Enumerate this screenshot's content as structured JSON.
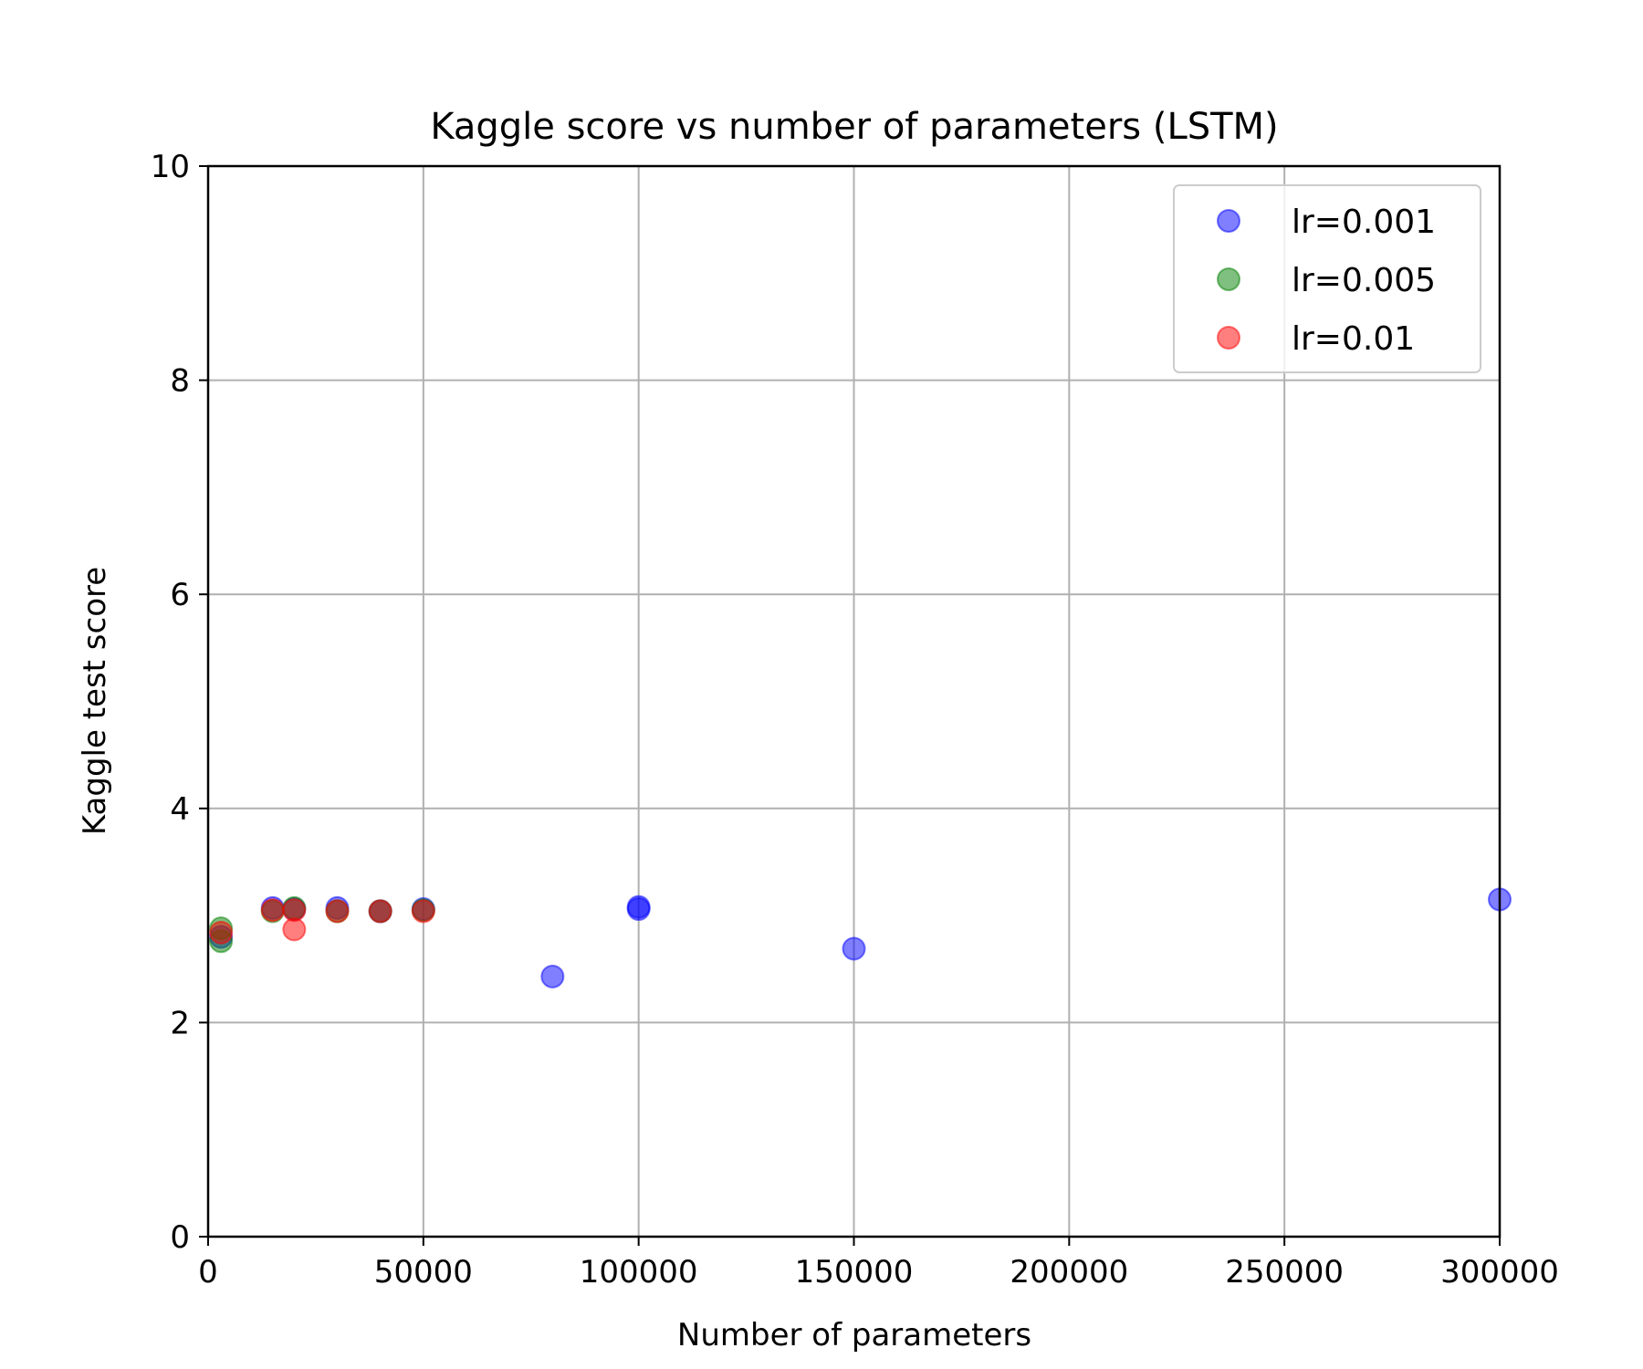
{
  "chart_data": {
    "type": "scatter",
    "title": "Kaggle score vs number of parameters (LSTM)",
    "xlabel": "Number of parameters",
    "ylabel": "Kaggle test score",
    "xlim": [
      0,
      300000
    ],
    "ylim": [
      0,
      10
    ],
    "xticks": [
      0,
      50000,
      100000,
      150000,
      200000,
      250000,
      300000
    ],
    "xtick_labels": [
      "0",
      "50000",
      "100000",
      "150000",
      "200000",
      "250000",
      "300000"
    ],
    "yticks": [
      0,
      2,
      4,
      6,
      8,
      10
    ],
    "ytick_labels": [
      "0",
      "2",
      "4",
      "6",
      "8",
      "10"
    ],
    "grid": true,
    "legend_position": "top-right",
    "series": [
      {
        "name": "lr=0.001",
        "color": "#0000ff",
        "points": [
          {
            "x": 3000,
            "y": 2.8
          },
          {
            "x": 15000,
            "y": 3.07
          },
          {
            "x": 20000,
            "y": 3.06
          },
          {
            "x": 30000,
            "y": 3.07
          },
          {
            "x": 40000,
            "y": 3.04
          },
          {
            "x": 50000,
            "y": 3.06
          },
          {
            "x": 80000,
            "y": 2.43
          },
          {
            "x": 100000,
            "y": 3.08
          },
          {
            "x": 100000,
            "y": 3.06
          },
          {
            "x": 150000,
            "y": 2.69
          },
          {
            "x": 300000,
            "y": 3.15
          }
        ]
      },
      {
        "name": "lr=0.005",
        "color": "#008000",
        "points": [
          {
            "x": 3000,
            "y": 2.76
          },
          {
            "x": 3000,
            "y": 2.88
          },
          {
            "x": 15000,
            "y": 3.04
          },
          {
            "x": 20000,
            "y": 3.07
          },
          {
            "x": 30000,
            "y": 3.04
          },
          {
            "x": 40000,
            "y": 3.04
          },
          {
            "x": 50000,
            "y": 3.05
          }
        ]
      },
      {
        "name": "lr=0.01",
        "color": "#ff0000",
        "points": [
          {
            "x": 3000,
            "y": 2.84
          },
          {
            "x": 15000,
            "y": 3.05
          },
          {
            "x": 20000,
            "y": 2.87
          },
          {
            "x": 20000,
            "y": 3.05
          },
          {
            "x": 30000,
            "y": 3.04
          },
          {
            "x": 40000,
            "y": 3.04
          },
          {
            "x": 50000,
            "y": 3.04
          }
        ]
      }
    ]
  }
}
